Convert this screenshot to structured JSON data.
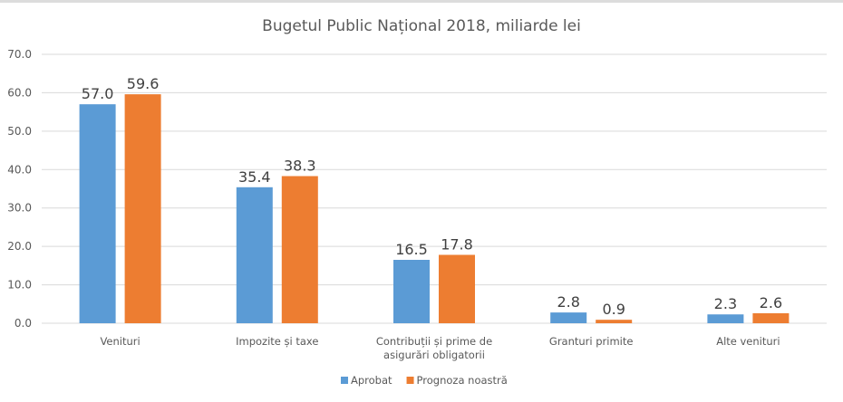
{
  "chart_data": {
    "type": "bar",
    "title": "Bugetul Public Național 2018, miliarde lei",
    "xlabel": "",
    "ylabel": "",
    "ylim": [
      0,
      70
    ],
    "yticks": [
      "0.0",
      "10.0",
      "20.0",
      "30.0",
      "40.0",
      "50.0",
      "60.0",
      "70.0"
    ],
    "ytick_values": [
      0,
      10,
      20,
      30,
      40,
      50,
      60,
      70
    ],
    "grid": true,
    "legend_position": "bottom",
    "categories": [
      [
        "Venituri"
      ],
      [
        "Impozite și taxe"
      ],
      [
        "Contribuții și prime de",
        "asigurări obligatorii"
      ],
      [
        "Granturi primite"
      ],
      [
        "Alte venituri"
      ]
    ],
    "series": [
      {
        "name": "Aprobat",
        "color": "#5b9bd5",
        "values": [
          57.0,
          35.4,
          16.5,
          2.8,
          2.3
        ],
        "labels": [
          "57.0",
          "35.4",
          "16.5",
          "2.8",
          "2.3"
        ]
      },
      {
        "name": "Prognoza noastră",
        "color": "#ed7d31",
        "values": [
          59.6,
          38.3,
          17.8,
          0.9,
          2.6
        ],
        "labels": [
          "59.6",
          "38.3",
          "17.8",
          "0.9",
          "2.6"
        ]
      }
    ]
  }
}
